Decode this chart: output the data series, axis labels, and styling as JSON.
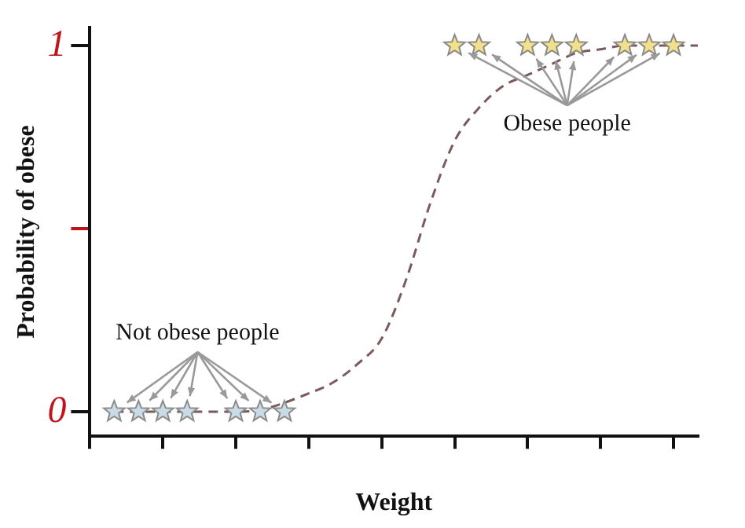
{
  "chart_data": {
    "type": "scatter",
    "xlabel": "Weight",
    "ylabel": "Probability of obese",
    "categories": [
      null,
      null,
      null,
      null,
      null,
      null,
      null,
      null,
      null,
      null,
      null,
      null,
      null,
      null,
      null,
      null,
      null,
      null,
      null,
      null,
      null,
      null,
      null,
      null,
      null,
      null
    ],
    "ylim": [
      -0.067,
      1.05
    ],
    "yticks": [
      0,
      {
        "value": 0.5,
        "label": null
      },
      1
    ],
    "grid": false,
    "legend": false,
    "marker": "star",
    "series": [
      {
        "type": "scatter",
        "color": "#c9dbe6",
        "values": [
          null,
          0,
          0,
          0,
          0,
          null,
          0,
          0,
          0,
          null,
          null,
          null,
          null,
          null,
          null,
          null,
          null,
          null,
          null,
          null,
          null,
          null,
          null,
          null,
          null,
          null
        ]
      },
      {
        "type": "scatter",
        "color": "#f3e08c",
        "values": [
          null,
          null,
          null,
          null,
          null,
          null,
          null,
          null,
          null,
          null,
          null,
          null,
          null,
          null,
          null,
          1,
          1,
          null,
          1,
          1,
          1,
          null,
          1,
          1,
          1,
          null
        ]
      },
      {
        "type": "line",
        "color": "#7a5a5a",
        "line_style": "dashed",
        "marker": "none",
        "values": [
          null,
          0,
          0,
          0,
          0,
          0,
          0,
          0.005,
          null,
          0.05,
          0.08,
          0.13,
          0.2,
          0.36,
          0.57,
          0.74,
          0.83,
          0.89,
          0.92,
          0.95,
          0.98,
          0.99,
          1,
          1,
          1,
          1
        ]
      }
    ],
    "annotations": [
      "Not obese people",
      "Obese people"
    ]
  }
}
